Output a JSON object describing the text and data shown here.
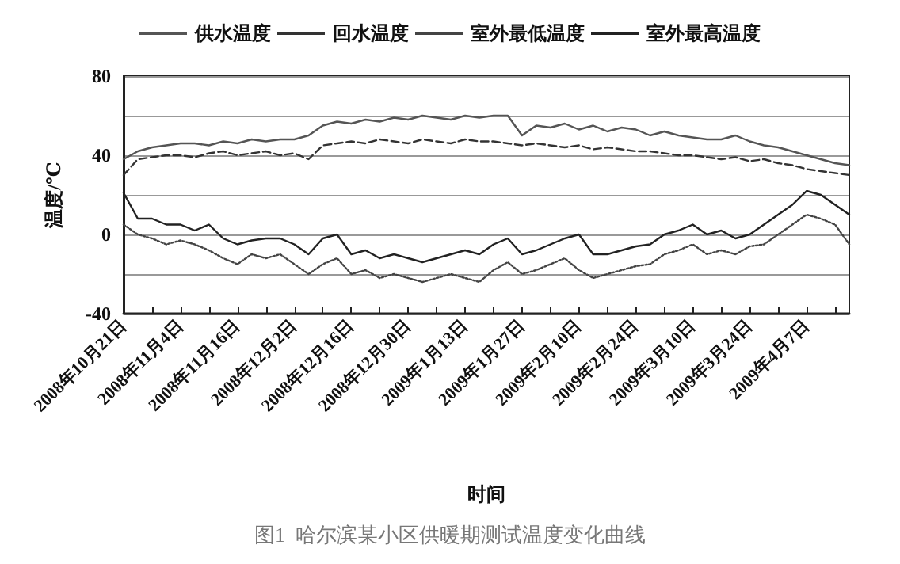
{
  "chart_data": {
    "type": "line",
    "xlabel": "时间",
    "ylabel": "温度/℃",
    "annotations": [
      "图1  哈尔滨某小区供暖期测试温度变化曲线"
    ],
    "categories": [
      "2008年10月21日",
      null,
      null,
      null,
      "2008年11月4日",
      null,
      null,
      null,
      "2008年11月16日",
      null,
      null,
      null,
      "2008年12月2日",
      null,
      null,
      null,
      "2008年12月16日",
      null,
      null,
      null,
      "2008年12月30日",
      null,
      null,
      null,
      "2009年1月13日",
      null,
      null,
      null,
      "2009年1月27日",
      null,
      null,
      null,
      "2009年2月10日",
      null,
      null,
      null,
      "2009年2月24日",
      null,
      null,
      null,
      "2009年3月10日",
      null,
      null,
      null,
      "2009年3月24日",
      null,
      null,
      null,
      "2009年4月7日",
      null,
      null,
      null
    ],
    "series": [
      {
        "name": "供水温度",
        "color": "#555555",
        "line_style": "solid",
        "values": [
          38,
          42,
          44,
          45,
          46,
          46,
          45,
          47,
          46,
          48,
          47,
          48,
          48,
          50,
          55,
          57,
          56,
          58,
          57,
          59,
          58,
          60,
          59,
          58,
          60,
          59,
          60,
          60,
          50,
          55,
          54,
          56,
          53,
          55,
          52,
          54,
          53,
          50,
          52,
          50,
          49,
          48,
          48,
          50,
          47,
          45,
          44,
          42,
          40,
          38,
          36,
          35
        ]
      },
      {
        "name": "回水温度",
        "color": "#333333",
        "line_style": "dashed",
        "values": [
          30,
          38,
          39,
          40,
          40,
          39,
          41,
          42,
          40,
          41,
          42,
          40,
          41,
          38,
          45,
          46,
          47,
          46,
          48,
          47,
          46,
          48,
          47,
          46,
          48,
          47,
          47,
          46,
          45,
          46,
          45,
          44,
          45,
          43,
          44,
          43,
          42,
          42,
          41,
          40,
          40,
          39,
          38,
          39,
          37,
          38,
          36,
          35,
          33,
          32,
          31,
          30
        ]
      },
      {
        "name": "室外最低温度",
        "color": "#444444",
        "line_style": "dotted",
        "values": [
          5,
          0,
          -2,
          -5,
          -3,
          -5,
          -8,
          -12,
          -15,
          -10,
          -12,
          -10,
          -15,
          -20,
          -15,
          -12,
          -20,
          -18,
          -22,
          -20,
          -22,
          -24,
          -22,
          -20,
          -22,
          -24,
          -18,
          -14,
          -20,
          -18,
          -15,
          -12,
          -18,
          -22,
          -20,
          -18,
          -16,
          -15,
          -10,
          -8,
          -5,
          -10,
          -8,
          -10,
          -6,
          -5,
          0,
          5,
          10,
          8,
          5,
          -5
        ]
      },
      {
        "name": "室外最高温度",
        "color": "#222222",
        "line_style": "solid",
        "values": [
          21,
          8,
          8,
          5,
          5,
          2,
          5,
          -2,
          -5,
          -3,
          -2,
          -2,
          -5,
          -10,
          -2,
          0,
          -10,
          -8,
          -12,
          -10,
          -12,
          -14,
          -12,
          -10,
          -8,
          -10,
          -5,
          -2,
          -10,
          -8,
          -5,
          -2,
          0,
          -10,
          -10,
          -8,
          -6,
          -5,
          0,
          2,
          5,
          0,
          2,
          -2,
          0,
          5,
          10,
          15,
          22,
          20,
          15,
          10
        ]
      }
    ],
    "ylim": [
      -40,
      80
    ],
    "yticks": [
      -40,
      {
        "value": -20,
        "label": null
      },
      0,
      {
        "value": 20,
        "label": null
      },
      40,
      {
        "value": 60,
        "label": null
      },
      80
    ],
    "grid": "y",
    "legend": "top",
    "marker": "none"
  }
}
